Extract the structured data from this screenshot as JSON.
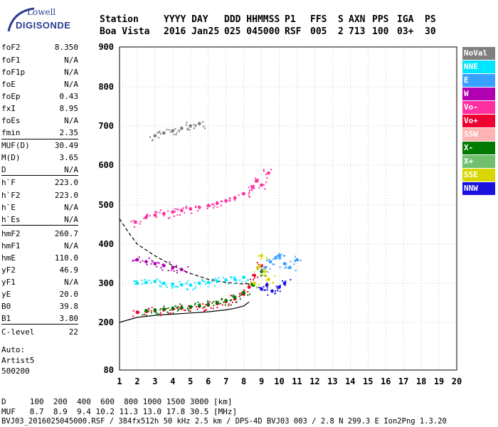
{
  "logo": {
    "line1": "Lowell",
    "line2": "DIGISONDE"
  },
  "header": {
    "row1": [
      "Station",
      "YYYY DAY",
      "DDD HHMMSS",
      "P1",
      "FFS",
      "S",
      "AXN",
      "PPS",
      "IGA",
      "PS"
    ],
    "row2": [
      "Boa Vista",
      "2016 Jan25",
      "025 045000",
      "RSF",
      "005",
      "2",
      "713",
      "100",
      "03+",
      "30"
    ]
  },
  "params": [
    {
      "name": "foF2",
      "value": "8.350"
    },
    {
      "name": "foF1",
      "value": "N/A"
    },
    {
      "name": "foF1p",
      "value": "N/A"
    },
    {
      "name": "foE",
      "value": "N/A"
    },
    {
      "name": "foEp",
      "value": "0.43"
    },
    {
      "name": "fxI",
      "value": "8.95"
    },
    {
      "name": "foEs",
      "value": "N/A"
    },
    {
      "name": "fmin",
      "value": "2.35"
    },
    {
      "name": "MUF(D)",
      "value": "30.49"
    },
    {
      "name": "M(D)",
      "value": "3.65"
    },
    {
      "name": "D",
      "value": "N/A"
    },
    {
      "name": "h`F",
      "value": "223.0"
    },
    {
      "name": "h`F2",
      "value": "223.0"
    },
    {
      "name": "h`E",
      "value": "N/A"
    },
    {
      "name": "h`Es",
      "value": "N/A"
    },
    {
      "name": "hmF2",
      "value": "260.7"
    },
    {
      "name": "hmF1",
      "value": "N/A"
    },
    {
      "name": "hmE",
      "value": "110.0"
    },
    {
      "name": "yF2",
      "value": "46.9"
    },
    {
      "name": "yF1",
      "value": "N/A"
    },
    {
      "name": "yE",
      "value": "20.0"
    },
    {
      "name": "B0",
      "value": "39.8"
    },
    {
      "name": "B1",
      "value": "3.80"
    },
    {
      "name": "C-level",
      "value": "22"
    }
  ],
  "auto": {
    "line1": "Auto:",
    "line2": "Artist5",
    "line3": "500200"
  },
  "legend": [
    {
      "label": "NoVal",
      "color": "#7f7f7f"
    },
    {
      "label": "NNE",
      "color": "#00e5ff"
    },
    {
      "label": "E",
      "color": "#3aa0ff"
    },
    {
      "label": "W",
      "color": "#b000b0"
    },
    {
      "label": "Vo-",
      "color": "#ff2fa0"
    },
    {
      "label": "Vo+",
      "color": "#ee0030"
    },
    {
      "label": "SSW",
      "color": "#ffb3b3"
    },
    {
      "label": "X-",
      "color": "#007a00"
    },
    {
      "label": "X+",
      "color": "#70c070"
    },
    {
      "label": "SSE",
      "color": "#d8d800"
    },
    {
      "label": "NNW",
      "color": "#1a10e0"
    }
  ],
  "footer": {
    "line1": "D     100  200  400  600  800 1000 1500 3000 [km]",
    "line2": "MUF   8.7  8.9  9.4 10.2 11.3 13.0 17.8 30.5 [MHz]",
    "line3": "BVJ03_2016025045000.RSF / 384fx512h 50 kHz 2.5 km / DPS-4D BVJ03 003 / 2.8 N 299.3 E Ion2Png 1.3.20"
  },
  "chart_data": {
    "type": "scatter",
    "xlim": [
      1,
      20
    ],
    "ylim": [
      80,
      900
    ],
    "x_ticks": [
      1,
      2,
      3,
      4,
      5,
      6,
      7,
      8,
      9,
      10,
      11,
      12,
      13,
      14,
      15,
      16,
      17,
      18,
      19,
      20
    ],
    "y_ticks": [
      80,
      200,
      300,
      400,
      500,
      600,
      700,
      800,
      900
    ],
    "grid": true,
    "series": [
      {
        "name": "Vo+",
        "color": "#ee0030",
        "x": [
          2.0,
          2.5,
          3.0,
          3.5,
          4.0,
          4.5,
          5.0,
          5.5,
          6.0,
          6.5,
          7.0,
          7.5,
          8.0,
          8.3,
          8.6,
          9.0
        ],
        "y": [
          226,
          228,
          230,
          232,
          234,
          236,
          238,
          241,
          244,
          248,
          253,
          260,
          272,
          290,
          320,
          345
        ]
      },
      {
        "name": "X-",
        "color": "#007a00",
        "x": [
          2.5,
          3.0,
          3.5,
          4.0,
          4.5,
          5.0,
          5.5,
          6.0,
          6.5,
          7.0,
          7.5,
          8.0,
          8.5,
          9.0
        ],
        "y": [
          230,
          232,
          234,
          236,
          238,
          240,
          243,
          246,
          250,
          256,
          264,
          276,
          296,
          330
        ]
      },
      {
        "name": "Vo-",
        "color": "#ff2fa0",
        "x": [
          1.9,
          2.5,
          3.0,
          3.5,
          4.0,
          4.5,
          5.0,
          5.5,
          6.0,
          6.5,
          7.0,
          7.5,
          8.0,
          8.5,
          8.7,
          9.0,
          9.4
        ],
        "y": [
          456,
          468,
          474,
          478,
          482,
          486,
          490,
          494,
          498,
          504,
          510,
          518,
          528,
          545,
          560,
          550,
          580
        ]
      },
      {
        "name": "W",
        "color": "#b000b0",
        "x": [
          2.0,
          2.5,
          3.0,
          3.5,
          4.0,
          4.5
        ],
        "y": [
          360,
          355,
          350,
          345,
          340,
          335
        ]
      },
      {
        "name": "NNE",
        "color": "#00e5ff",
        "x": [
          2.0,
          2.5,
          3.0,
          3.5,
          4.0,
          4.5,
          5.0,
          5.5,
          6.0,
          6.5,
          7.0,
          7.5,
          8.0
        ],
        "y": [
          300,
          302,
          305,
          300,
          298,
          296,
          295,
          300,
          302,
          305,
          308,
          310,
          315
        ]
      },
      {
        "name": "E",
        "color": "#3aa0ff",
        "x": [
          9.2,
          9.5,
          9.8,
          10.0,
          10.3,
          10.6,
          11.0
        ],
        "y": [
          340,
          355,
          365,
          370,
          350,
          340,
          360
        ]
      },
      {
        "name": "NNW",
        "color": "#1a10e0",
        "x": [
          9.0,
          9.3,
          9.6,
          10.0,
          10.3
        ],
        "y": [
          285,
          295,
          280,
          290,
          300
        ]
      },
      {
        "name": "SSE",
        "color": "#d8d800",
        "x": [
          8.6,
          8.8,
          9.0,
          9.2,
          9.4
        ],
        "y": [
          300,
          340,
          370,
          330,
          310
        ]
      },
      {
        "name": "NoVal",
        "color": "#7f7f7f",
        "x": [
          3.0,
          3.5,
          4.0,
          4.5,
          5.0,
          5.5
        ],
        "y": [
          675,
          682,
          688,
          694,
          700,
          706
        ]
      }
    ]
  }
}
